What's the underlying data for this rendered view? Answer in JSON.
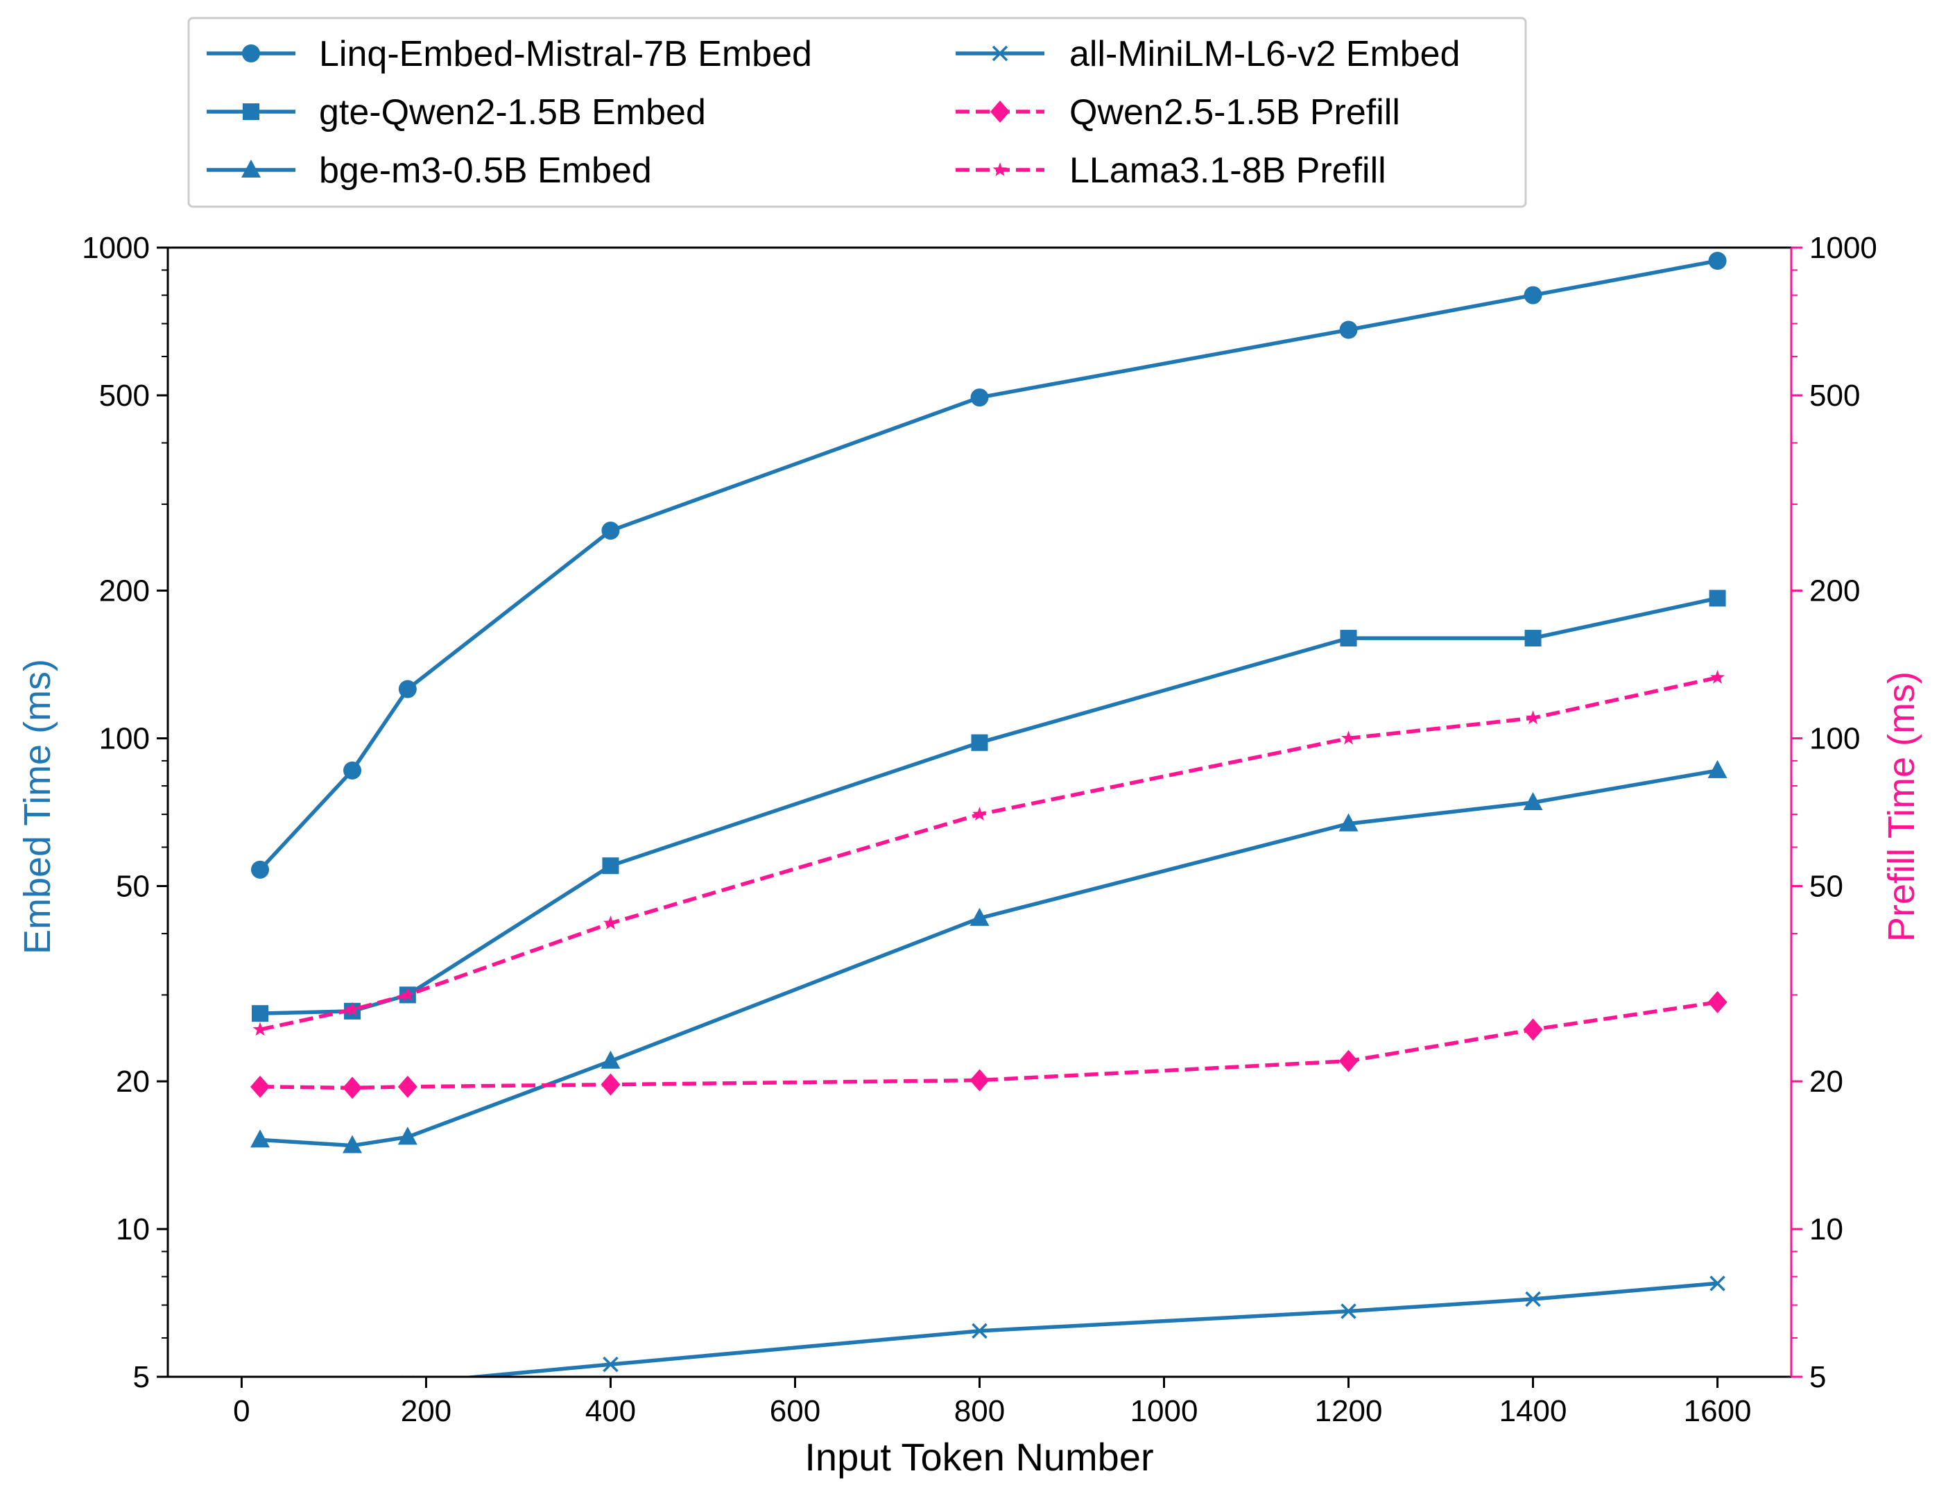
{
  "chart_data": {
    "type": "line",
    "title": "",
    "xlabel": "Input Token Number",
    "ylabel_left": "Embed Time (ms)",
    "ylabel_right": "Prefill Time (ms)",
    "xlim": [
      -80,
      1680
    ],
    "ylim": [
      5,
      1000
    ],
    "yscale": "log",
    "x_ticks": [
      0,
      200,
      400,
      600,
      800,
      1000,
      1200,
      1400,
      1600
    ],
    "y_ticks": [
      5,
      10,
      20,
      50,
      100,
      200,
      500,
      1000
    ],
    "grid": false,
    "legend_placement": "top (above plot, two columns)",
    "colors": {
      "embed": "#1f77b4",
      "prefill": "#ff1493"
    },
    "series": [
      {
        "name": "Linq-Embed-Mistral-7B Embed",
        "axis": "left",
        "marker": "circle",
        "dash": "solid",
        "x": [
          20,
          120,
          180,
          400,
          800,
          1200,
          1400,
          1600
        ],
        "y": [
          54,
          86,
          126,
          265,
          495,
          680,
          800,
          940
        ]
      },
      {
        "name": "gte-Qwen2-1.5B Embed",
        "axis": "left",
        "marker": "square",
        "dash": "solid",
        "x": [
          20,
          120,
          180,
          400,
          800,
          1200,
          1400,
          1600
        ],
        "y": [
          27.5,
          27.8,
          30,
          55,
          98,
          160,
          160,
          193
        ]
      },
      {
        "name": "bge-m3-0.5B Embed",
        "axis": "left",
        "marker": "triangle",
        "dash": "solid",
        "x": [
          20,
          120,
          180,
          400,
          800,
          1200,
          1400,
          1600
        ],
        "y": [
          15.2,
          14.8,
          15.4,
          22,
          43,
          67,
          74,
          86
        ]
      },
      {
        "name": "all-MiniLM-L6-v2 Embed",
        "axis": "left",
        "marker": "x",
        "dash": "solid",
        "x": [
          180,
          400,
          800,
          1200,
          1400,
          1600
        ],
        "y": [
          4.85,
          5.3,
          6.2,
          6.8,
          7.2,
          7.75
        ]
      },
      {
        "name": "Qwen2.5-1.5B Prefill",
        "axis": "right",
        "marker": "diamond",
        "dash": "dashed",
        "x": [
          20,
          120,
          180,
          400,
          800,
          1200,
          1400,
          1600
        ],
        "y": [
          19.5,
          19.4,
          19.5,
          19.7,
          20.1,
          22,
          25.5,
          29
        ]
      },
      {
        "name": "LLama3.1-8B Prefill",
        "axis": "right",
        "marker": "star",
        "dash": "dashed",
        "x": [
          20,
          120,
          180,
          400,
          800,
          1200,
          1400,
          1600
        ],
        "y": [
          25.5,
          28,
          30,
          42,
          70,
          100,
          110,
          133
        ]
      }
    ]
  }
}
